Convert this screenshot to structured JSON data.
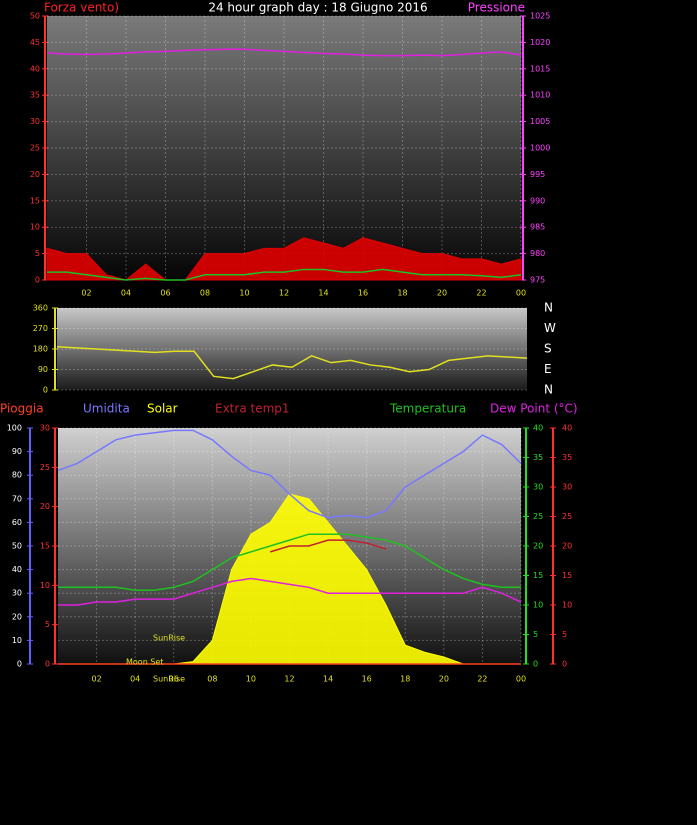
{
  "chart_data": [
    {
      "type": "line",
      "title": "24 hour graph day : 18 Giugno 2016",
      "ylabel": "Forza vento)",
      "y2label": "Pressione",
      "x": [
        0,
        1,
        2,
        3,
        4,
        5,
        6,
        7,
        8,
        9,
        10,
        11,
        12,
        13,
        14,
        15,
        16,
        17,
        18,
        19,
        20,
        21,
        22,
        23,
        24
      ],
      "xlim": [
        0,
        24
      ],
      "xticks": [
        {
          "value": 2,
          "label": "02"
        },
        {
          "value": 4,
          "label": "04"
        },
        {
          "value": 6,
          "label": "06"
        },
        {
          "value": 8,
          "label": "08"
        },
        10,
        12,
        14,
        16,
        18,
        20,
        22,
        {
          "value": 24,
          "label": "00"
        }
      ],
      "ylim": [
        0,
        50
      ],
      "yticks": [
        0,
        5,
        10,
        15,
        20,
        25,
        30,
        35,
        40,
        45,
        50
      ],
      "y2lim": [
        975,
        1025
      ],
      "y2ticks": [
        975,
        980,
        985,
        990,
        995,
        1000,
        1005,
        1010,
        1015,
        1020,
        1025
      ],
      "grid": true,
      "series": [
        {
          "color": "#e00000",
          "style": "area",
          "values": [
            6,
            5,
            5,
            1,
            0,
            3,
            0,
            0,
            5,
            5,
            5,
            6,
            6,
            8,
            7,
            6,
            8,
            7,
            6,
            5,
            5,
            4,
            4,
            3,
            4
          ]
        },
        {
          "color": "#20c020",
          "values": [
            1.5,
            1.5,
            1,
            0.5,
            0,
            0.3,
            0,
            0,
            1,
            1,
            1,
            1.5,
            1.5,
            2,
            2,
            1.5,
            1.5,
            2,
            1.5,
            1,
            1,
            1,
            0.8,
            0.5,
            1
          ]
        },
        {
          "color": "#e020e0",
          "axis": "y2",
          "values": [
            1018.0,
            1017.8,
            1017.7,
            1017.8,
            1018.0,
            1018.2,
            1018.3,
            1018.5,
            1018.6,
            1018.7,
            1018.7,
            1018.5,
            1018.3,
            1018.1,
            1017.9,
            1017.8,
            1017.6,
            1017.5,
            1017.5,
            1017.6,
            1017.5,
            1017.7,
            1018.0,
            1018.2,
            1017.6
          ]
        }
      ]
    },
    {
      "type": "line",
      "x": [
        0,
        1,
        2,
        3,
        4,
        5,
        6,
        7,
        8,
        9,
        10,
        11,
        12,
        13,
        14,
        15,
        16,
        17,
        18,
        19,
        20,
        21,
        22,
        23,
        24
      ],
      "xlim": [
        0,
        24
      ],
      "ylim": [
        0,
        360
      ],
      "yticks": [
        0,
        90,
        180,
        270,
        360
      ],
      "y2lim": [
        0,
        360
      ],
      "y2ticks": [
        {
          "value": 360,
          "label": "N"
        },
        {
          "value": 270,
          "label": "W"
        },
        {
          "value": 180,
          "label": "S"
        },
        {
          "value": 90,
          "label": "E"
        },
        {
          "value": 0,
          "label": "N"
        }
      ],
      "grid": true,
      "series": [
        {
          "color": "#e0e020",
          "values": [
            190,
            185,
            180,
            175,
            170,
            165,
            170,
            170,
            60,
            50,
            80,
            110,
            100,
            150,
            120,
            130,
            110,
            100,
            80,
            90,
            130,
            140,
            150,
            145,
            140
          ]
        }
      ]
    },
    {
      "type": "line",
      "x": [
        0,
        1,
        2,
        3,
        4,
        5,
        6,
        7,
        8,
        9,
        10,
        11,
        12,
        13,
        14,
        15,
        16,
        17,
        18,
        19,
        20,
        21,
        22,
        23,
        24
      ],
      "xlim": [
        0,
        24
      ],
      "xticks": [
        {
          "value": 2,
          "label": "02"
        },
        {
          "value": 4,
          "label": "04"
        },
        {
          "value": 6,
          "label": "06"
        },
        {
          "value": 8,
          "label": "08"
        },
        10,
        12,
        14,
        16,
        18,
        20,
        22,
        {
          "value": 24,
          "label": "00"
        }
      ],
      "ylim": [
        0,
        100
      ],
      "yticks": [
        0,
        10,
        20,
        30,
        40,
        50,
        60,
        70,
        80,
        90,
        100
      ],
      "y2lim": [
        0,
        30
      ],
      "y2ticks": [
        0,
        5,
        10,
        15,
        20,
        25,
        30
      ],
      "y3lim": [
        0,
        40
      ],
      "y3ticks": [
        0,
        5,
        10,
        15,
        20,
        25,
        30,
        35,
        40
      ],
      "y4lim": [
        0,
        40
      ],
      "y4ticks": [
        0,
        5,
        10,
        15,
        20,
        25,
        30,
        35,
        40
      ],
      "grid": true,
      "annotations": [
        "SunRise",
        "Moon Set",
        "SunRise"
      ],
      "series": [
        {
          "name": "Solar",
          "color": "#ffff00",
          "style": "area",
          "values": [
            0,
            0,
            0,
            0,
            0,
            0,
            0,
            1,
            10,
            40,
            55,
            60,
            72,
            70,
            60,
            50,
            40,
            25,
            8,
            5,
            3,
            0,
            0,
            0,
            0
          ]
        },
        {
          "name": "Pioggia",
          "color": "#ff4020",
          "axis": "y2",
          "values": [
            0,
            0,
            0,
            0,
            0,
            0,
            0,
            0,
            0,
            0,
            0,
            0,
            0,
            0,
            0,
            0,
            0,
            0,
            0,
            0,
            0,
            0,
            0,
            0,
            0
          ]
        },
        {
          "name": "Umidita",
          "color": "#7878ff",
          "values": [
            82,
            85,
            90,
            95,
            97,
            98,
            99,
            99,
            95,
            88,
            82,
            80,
            72,
            65,
            62,
            63,
            62,
            65,
            75,
            80,
            85,
            90,
            97,
            93,
            85
          ]
        },
        {
          "name": "Extra temp1",
          "color": "#c02030",
          "axis": "y4",
          "values": [
            null,
            null,
            null,
            null,
            null,
            null,
            null,
            null,
            null,
            null,
            null,
            19,
            20,
            20,
            21,
            21,
            20.5,
            19.5,
            null,
            null,
            null,
            null,
            null,
            null,
            null
          ]
        },
        {
          "name": "Temperatura",
          "color": "#20c020",
          "axis": "y3",
          "values": [
            13,
            13,
            13,
            13,
            12.5,
            12.5,
            13,
            14,
            16,
            18,
            19,
            20,
            21,
            22,
            22,
            22,
            21.5,
            21,
            20,
            18,
            16,
            14.5,
            13.5,
            13,
            13
          ]
        },
        {
          "name": "Dew Point (°C)",
          "color": "#e020e0",
          "axis": "y4",
          "values": [
            10,
            10,
            10.5,
            10.5,
            11,
            11,
            11,
            12,
            13,
            14,
            14.5,
            14,
            13.5,
            13,
            12,
            12,
            12,
            12,
            12,
            12,
            12,
            12,
            13,
            12,
            10.5
          ]
        }
      ]
    }
  ]
}
